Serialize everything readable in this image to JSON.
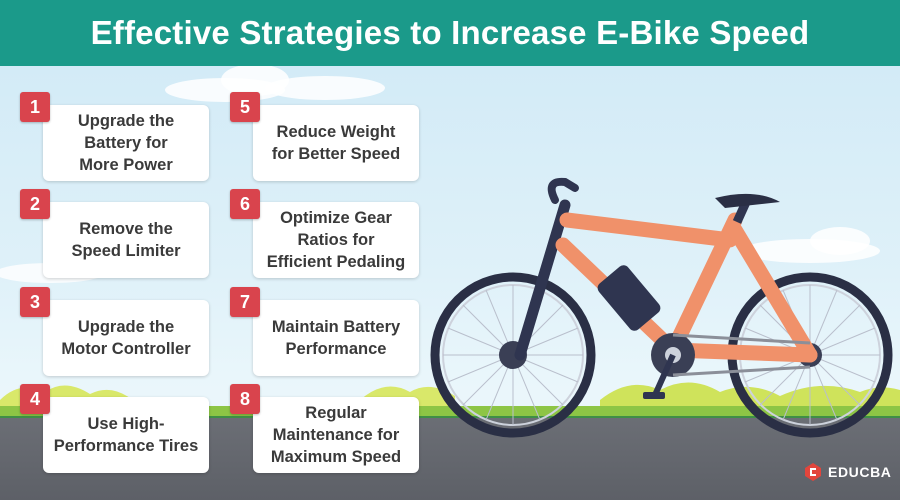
{
  "header": {
    "title": "Effective Strategies to Increase E-Bike Speed"
  },
  "colors": {
    "banner": "#1b9a8a",
    "badge": "#d9444d",
    "frame": "#f0916a",
    "sky": "#d7eef8",
    "road": "#63666d"
  },
  "strategies": [
    {
      "number": "1",
      "text": "Upgrade the\nBattery for\nMore Power"
    },
    {
      "number": "2",
      "text": "Remove the\nSpeed Limiter"
    },
    {
      "number": "3",
      "text": "Upgrade the\nMotor Controller"
    },
    {
      "number": "4",
      "text": "Use High-\nPerformance Tires"
    },
    {
      "number": "5",
      "text": "Reduce Weight\nfor Better Speed"
    },
    {
      "number": "6",
      "text": "Optimize Gear\nRatios for\nEfficient Pedaling"
    },
    {
      "number": "7",
      "text": "Maintain Battery\nPerformance"
    },
    {
      "number": "8",
      "text": "Regular\nMaintenance for\nMaximum Speed"
    }
  ],
  "illustration": {
    "subject": "e-bike-icon"
  },
  "logo": {
    "text": "EDUCBA",
    "icon": "educba-logo-icon"
  }
}
